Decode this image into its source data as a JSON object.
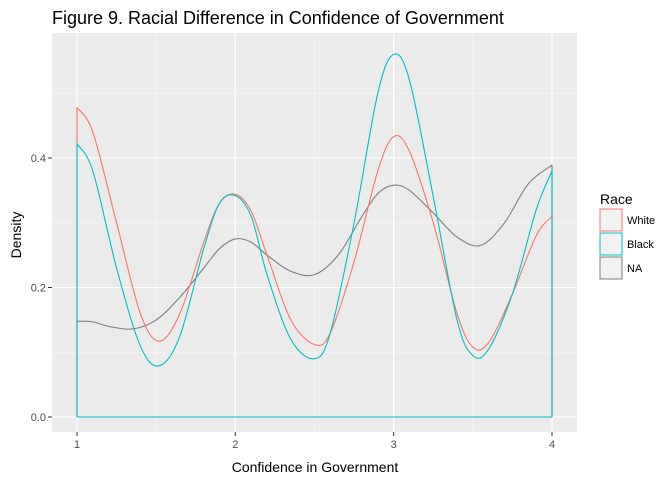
{
  "chart_data": {
    "type": "line",
    "subtype": "density",
    "title": "Figure 9. Racial Difference in Confidence of Government",
    "xlabel": "Confidence in Government",
    "ylabel": "Density",
    "xlim": [
      1,
      4
    ],
    "ylim": [
      0,
      0.6
    ],
    "x_ticks": [
      1,
      2,
      3,
      4
    ],
    "x_tick_labels": [
      "1",
      "2",
      "3",
      "4"
    ],
    "y_ticks": [
      0.0,
      0.2,
      0.4
    ],
    "y_tick_labels": [
      "0.0",
      "0.2",
      "0.4"
    ],
    "grid": true,
    "legend": {
      "title": "Race",
      "position": "right"
    },
    "background": "#ebebeb",
    "series": [
      {
        "name": "White",
        "color": "#f8766d",
        "x": [
          1.0,
          1.1,
          1.25,
          1.4,
          1.52,
          1.65,
          1.8,
          1.9,
          2.0,
          2.1,
          2.2,
          2.35,
          2.5,
          2.6,
          2.75,
          2.9,
          3.0,
          3.1,
          3.25,
          3.4,
          3.5,
          3.6,
          3.75,
          3.9,
          4.0
        ],
        "y": [
          0.478,
          0.44,
          0.3,
          0.16,
          0.117,
          0.16,
          0.27,
          0.33,
          0.344,
          0.318,
          0.25,
          0.15,
          0.112,
          0.13,
          0.24,
          0.38,
          0.433,
          0.41,
          0.3,
          0.16,
          0.108,
          0.115,
          0.19,
          0.28,
          0.31
        ]
      },
      {
        "name": "Black",
        "color": "#00bfc4",
        "x": [
          1.0,
          1.1,
          1.25,
          1.4,
          1.52,
          1.65,
          1.8,
          1.9,
          2.0,
          2.1,
          2.2,
          2.35,
          2.5,
          2.6,
          2.75,
          2.9,
          3.0,
          3.1,
          3.25,
          3.4,
          3.5,
          3.6,
          3.75,
          3.9,
          4.0
        ],
        "y": [
          0.422,
          0.38,
          0.23,
          0.11,
          0.079,
          0.125,
          0.26,
          0.33,
          0.342,
          0.31,
          0.22,
          0.12,
          0.09,
          0.13,
          0.3,
          0.5,
          0.56,
          0.52,
          0.34,
          0.15,
          0.095,
          0.105,
          0.19,
          0.32,
          0.38
        ]
      },
      {
        "name": "NA",
        "color": "#7f7f7f",
        "x": [
          1.0,
          1.1,
          1.2,
          1.35,
          1.5,
          1.65,
          1.8,
          1.9,
          2.0,
          2.1,
          2.2,
          2.35,
          2.5,
          2.65,
          2.8,
          2.9,
          3.0,
          3.1,
          3.25,
          3.4,
          3.55,
          3.7,
          3.85,
          4.0
        ],
        "y": [
          0.148,
          0.147,
          0.14,
          0.136,
          0.15,
          0.185,
          0.23,
          0.26,
          0.275,
          0.27,
          0.25,
          0.225,
          0.22,
          0.25,
          0.31,
          0.345,
          0.358,
          0.35,
          0.315,
          0.278,
          0.265,
          0.3,
          0.36,
          0.389
        ]
      }
    ]
  }
}
